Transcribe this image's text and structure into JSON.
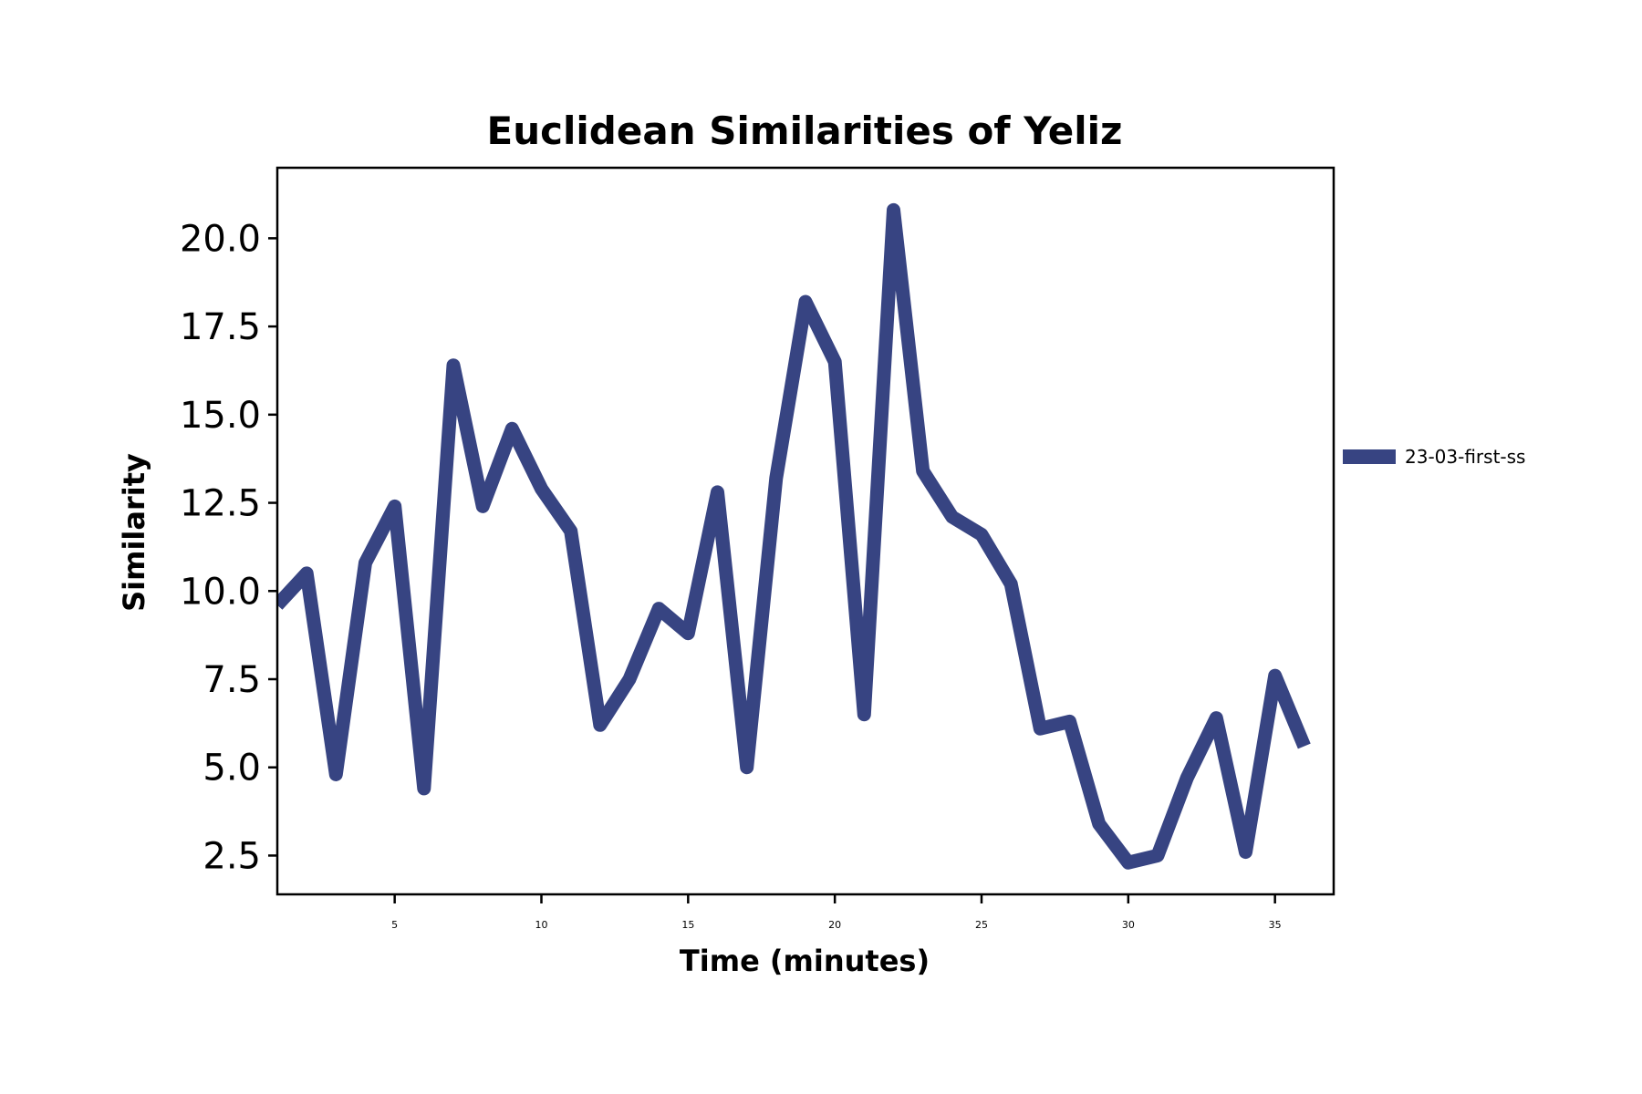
{
  "chart_data": {
    "type": "line",
    "title": "Euclidean Similarities of Yeliz",
    "xlabel": "Time (minutes)",
    "ylabel": "Similarity",
    "xlim": [
      1,
      37
    ],
    "ylim": [
      1.4,
      22.0
    ],
    "x_ticks": [
      5,
      10,
      15,
      20,
      25,
      30,
      35
    ],
    "x_tick_labels": [
      "5",
      "10",
      "15",
      "20",
      "25",
      "30",
      "35"
    ],
    "y_ticks": [
      2.5,
      5.0,
      7.5,
      10.0,
      12.5,
      15.0,
      17.5,
      20.0
    ],
    "y_tick_labels": [
      "2.5",
      "5.0",
      "7.5",
      "10.0",
      "12.5",
      "15.0",
      "17.5",
      "20.0"
    ],
    "grid": false,
    "legend_position": "right",
    "series": [
      {
        "name": "23-03-first-ss",
        "color": "#374482",
        "x": [
          1,
          2,
          3,
          4,
          5,
          6,
          7,
          8,
          9,
          10,
          11,
          12,
          13,
          14,
          15,
          16,
          17,
          18,
          19,
          20,
          21,
          22,
          23,
          24,
          25,
          26,
          27,
          28,
          29,
          30,
          31,
          32,
          33,
          34,
          35,
          36
        ],
        "values": [
          9.6,
          10.5,
          4.8,
          10.8,
          12.4,
          4.4,
          16.4,
          12.4,
          14.6,
          12.9,
          11.7,
          6.2,
          7.5,
          9.5,
          8.8,
          12.8,
          5.0,
          13.2,
          18.2,
          16.5,
          6.5,
          20.8,
          13.4,
          12.1,
          11.6,
          10.2,
          6.1,
          6.3,
          3.4,
          2.3,
          2.5,
          4.7,
          6.4,
          2.6,
          7.6,
          5.6
        ]
      }
    ]
  }
}
